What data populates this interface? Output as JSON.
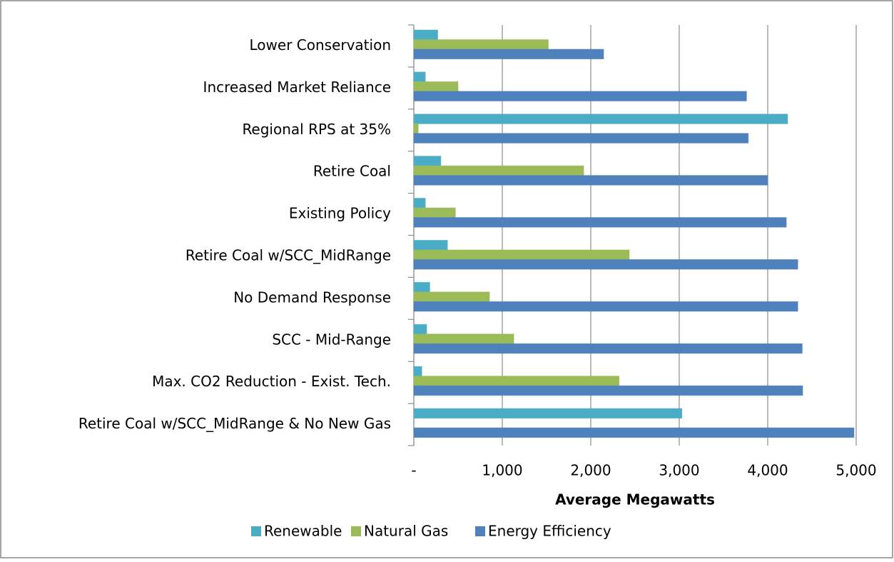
{
  "chart_data": {
    "type": "hbar",
    "categories": [
      "Lower Conservation",
      "Increased Market Reliance",
      "Regional RPS at 35%",
      "Retire Coal",
      "Existing Policy",
      "Retire Coal w/SCC_MidRange",
      "No Demand Response",
      "SCC - Mid-Range",
      "Max. CO2 Reduction - Exist. Tech.",
      "Retire Coal w/SCC_MidRange & No New Gas"
    ],
    "series": [
      {
        "name": "Renewable",
        "color": "#4bacc6",
        "values": [
          270,
          130,
          4225,
          305,
          130,
          380,
          180,
          145,
          90,
          3030
        ]
      },
      {
        "name": "Natural Gas",
        "color": "#9bbb59",
        "values": [
          1520,
          500,
          50,
          1920,
          470,
          2435,
          855,
          1130,
          2320,
          0
        ]
      },
      {
        "name": "Energy Efficiency",
        "color": "#4f81bd",
        "values": [
          2145,
          3760,
          3780,
          4000,
          4210,
          4340,
          4340,
          4390,
          4395,
          4975
        ]
      }
    ],
    "xlabel": "Average Megawatts",
    "xlim": [
      0,
      5000
    ],
    "xticks": [
      {
        "value": 0,
        "label": "-"
      },
      {
        "value": 1000,
        "label": "1,000"
      },
      {
        "value": 2000,
        "label": "2,000"
      },
      {
        "value": 3000,
        "label": "3,000"
      },
      {
        "value": 4000,
        "label": "4,000"
      },
      {
        "value": 5000,
        "label": "5,000"
      }
    ],
    "grid": true,
    "legend": "bottom"
  }
}
